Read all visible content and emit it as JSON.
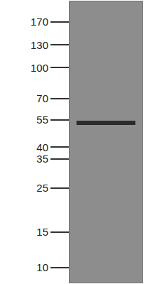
{
  "chart_data": {
    "type": "western_blot",
    "categories": [
      null,
      null
    ],
    "values": [
      53,
      53
    ],
    "color": "#2b2b2b",
    "log": "y",
    "ylim": [
      8.4,
      215
    ],
    "yticks": [
      170,
      130,
      100,
      70,
      55,
      40,
      35,
      25,
      15,
      10
    ],
    "tick_labels": "y",
    "grid": false
  }
}
